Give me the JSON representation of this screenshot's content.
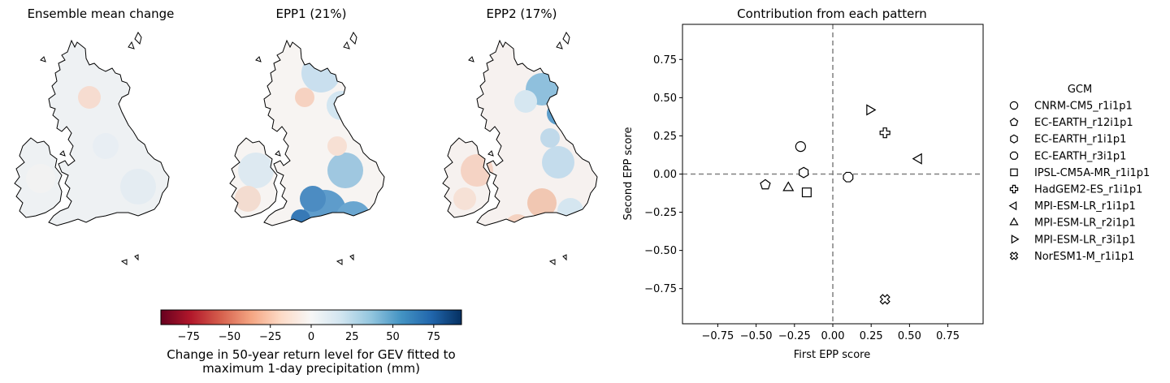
{
  "maps": [
    {
      "title": "Ensemble mean change"
    },
    {
      "title": "EPP1 (21%)"
    },
    {
      "title": "EPP2 (17%)"
    }
  ],
  "colorbar": {
    "label_line1": "Change in 50-year return level for GEV fitted to",
    "label_line2": "maximum 1-day precipitation (mm)",
    "ticks": [
      "−75",
      "−50",
      "−25",
      "0",
      "25",
      "50",
      "75"
    ],
    "tick_values": [
      -75,
      -50,
      -25,
      0,
      25,
      50,
      75
    ],
    "range": [
      -92,
      92
    ],
    "colormap": "RdBu",
    "colors": [
      "#67001f",
      "#b2182b",
      "#d6604d",
      "#f4a582",
      "#fddbc7",
      "#f7f7f7",
      "#d1e5f0",
      "#92c5de",
      "#4393c3",
      "#2166ac",
      "#053061"
    ]
  },
  "chart_data": {
    "type": "scatter",
    "title": "Contribution from each pattern",
    "xlabel": "First EPP score",
    "ylabel": "Second EPP score",
    "xlim": [
      -0.98,
      0.98
    ],
    "ylim": [
      -0.98,
      0.98
    ],
    "xticks": [
      "−0.75",
      "−0.50",
      "−0.25",
      "0.00",
      "0.25",
      "0.50",
      "0.75"
    ],
    "yticks": [
      "−0.75",
      "−0.50",
      "−0.25",
      "0.00",
      "0.25",
      "0.50",
      "0.75"
    ],
    "reference_lines": {
      "x": 0,
      "y": 0,
      "style": "dashed",
      "color": "#808080"
    },
    "legend": {
      "title": "GCM",
      "placement": "outside-right"
    },
    "series": [
      {
        "name": "CNRM-CM5_r1i1p1",
        "marker": "circle",
        "x": [
          -0.21
        ],
        "y": [
          0.18
        ]
      },
      {
        "name": "EC-EARTH_r12i1p1",
        "marker": "pentagon",
        "x": [
          -0.44
        ],
        "y": [
          -0.07
        ]
      },
      {
        "name": "EC-EARTH_r1i1p1",
        "marker": "hexagon",
        "x": [
          -0.19
        ],
        "y": [
          0.01
        ]
      },
      {
        "name": "EC-EARTH_r3i1p1",
        "marker": "octagon",
        "x": [
          0.1
        ],
        "y": [
          -0.02
        ]
      },
      {
        "name": "IPSL-CM5A-MR_r1i1p1",
        "marker": "square",
        "x": [
          -0.17
        ],
        "y": [
          -0.12
        ]
      },
      {
        "name": "HadGEM2-ES_r1i1p1",
        "marker": "plus",
        "x": [
          0.34
        ],
        "y": [
          0.27
        ]
      },
      {
        "name": "MPI-ESM-LR_r1i1p1",
        "marker": "triangle-left",
        "x": [
          0.56
        ],
        "y": [
          0.1
        ]
      },
      {
        "name": "MPI-ESM-LR_r2i1p1",
        "marker": "triangle-up",
        "x": [
          -0.29
        ],
        "y": [
          -0.09
        ]
      },
      {
        "name": "MPI-ESM-LR_r3i1p1",
        "marker": "triangle-right",
        "x": [
          0.24
        ],
        "y": [
          0.42
        ]
      },
      {
        "name": "NorESM1-M_r1i1p1",
        "marker": "x-filled",
        "x": [
          0.34
        ],
        "y": [
          -0.82
        ]
      }
    ]
  }
}
